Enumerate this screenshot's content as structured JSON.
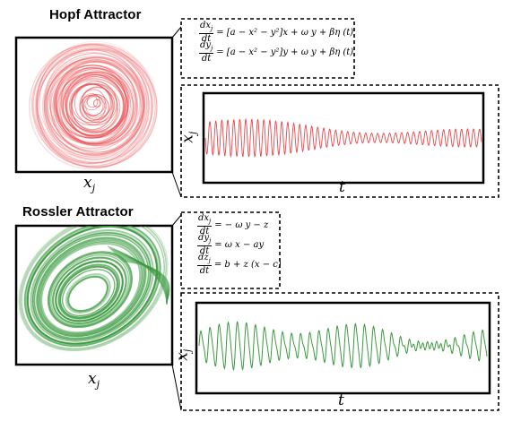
{
  "panels": {
    "hopf": {
      "title": "Hopf Attractor",
      "x_label_var": "x",
      "x_label_sub": "j",
      "equations": [
        {
          "num": "dx",
          "num_sub": "j",
          "den": "dt",
          "rhs": "= [a − x² − y²]x + ω y + βη (t)"
        },
        {
          "num": "dy",
          "num_sub": "j",
          "den": "dt",
          "rhs": "= [a − x² − y²]y + ω y + βη (t)"
        }
      ],
      "ts_x_label": "t",
      "ts_y_label_var": "x",
      "ts_y_label_sub": "j",
      "color": "#e8474a"
    },
    "rossler": {
      "title": "Rossler Attractor",
      "x_label_var": "x",
      "x_label_sub": "j",
      "equations": [
        {
          "num": "dx",
          "num_sub": "j",
          "den": "dt",
          "rhs": "= − ω y − z"
        },
        {
          "num": "dy",
          "num_sub": "j",
          "den": "dt",
          "rhs": "= ω x − ay"
        },
        {
          "num": "dz",
          "num_sub": "j",
          "den": "dt",
          "rhs": "= b + z (x − c)"
        }
      ],
      "ts_x_label": "t",
      "ts_y_label_var": "x",
      "ts_y_label_sub": "j",
      "color": "#3a9a3f"
    }
  }
}
